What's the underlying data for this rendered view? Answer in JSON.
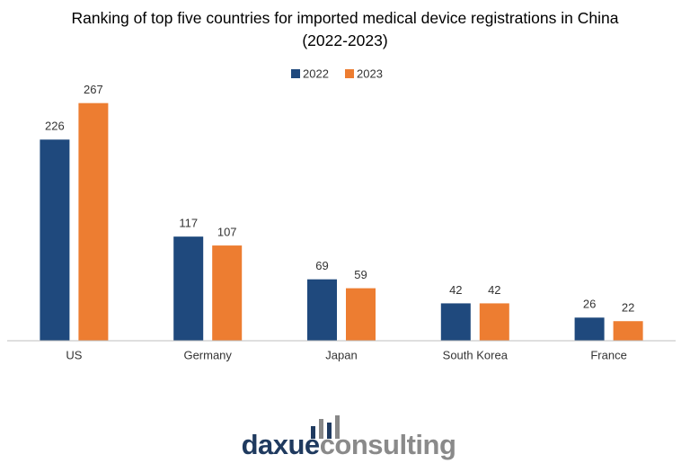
{
  "chart_data": {
    "type": "bar",
    "title": "Ranking of top five countries for imported medical device registrations in China (2022-2023)",
    "categories": [
      "US",
      "Germany",
      "Japan",
      "South Korea",
      "France"
    ],
    "series": [
      {
        "name": "2022",
        "color": "#1f497d",
        "values": [
          226,
          117,
          69,
          42,
          26
        ]
      },
      {
        "name": "2023",
        "color": "#ed7d31",
        "values": [
          267,
          107,
          59,
          42,
          22
        ]
      }
    ],
    "ylim": [
      0,
      300
    ],
    "grid": false,
    "legend": "top"
  },
  "watermark": {
    "prefix": "daxue",
    "suffix": "consulting"
  }
}
